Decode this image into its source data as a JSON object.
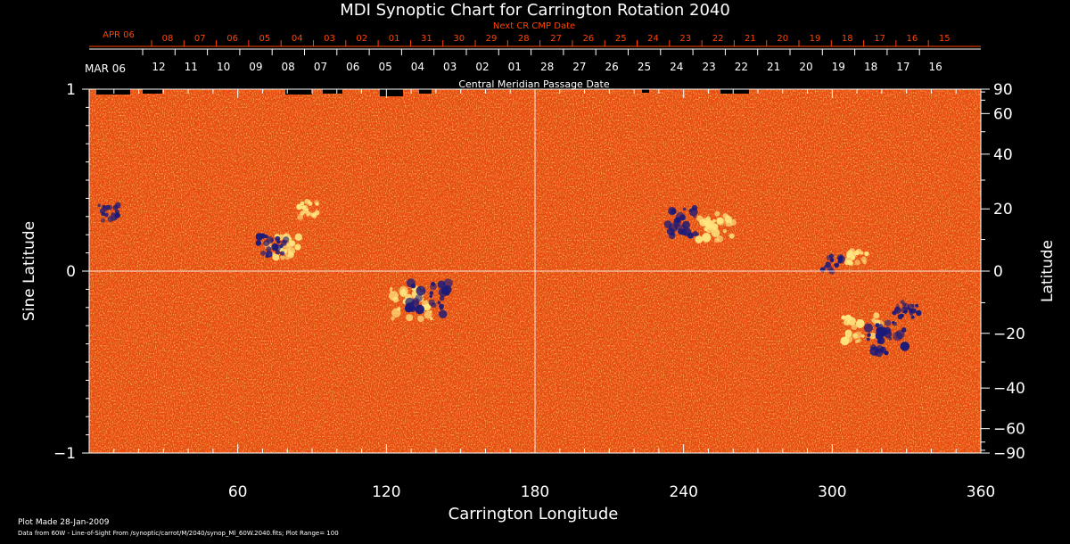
{
  "chart_data": {
    "type": "heatmap",
    "title": "MDI Synoptic Chart for Carrington Rotation 2040",
    "xlabel": "Carrington Longitude",
    "ylabel_left": "Sine Latitude",
    "ylabel_right": "Latitude",
    "xlim": [
      0,
      360
    ],
    "ylim": [
      -1,
      1
    ],
    "x_ticks": [
      60,
      120,
      180,
      240,
      300,
      360
    ],
    "y_ticks_left": [
      {
        "value": 1,
        "label": "1"
      },
      {
        "value": 0,
        "label": "0"
      },
      {
        "value": -1,
        "label": "−1"
      }
    ],
    "y_ticks_right": [
      90,
      60,
      40,
      20,
      0,
      -20,
      -40,
      -60,
      -90
    ],
    "cmp_label": "Central Meridian Passage Date",
    "cmp_month_label": "MAR 06",
    "cmp_dates": [
      "12",
      "11",
      "10",
      "09",
      "08",
      "07",
      "06",
      "05",
      "04",
      "03",
      "02",
      "01",
      "28",
      "27",
      "26",
      "25",
      "24",
      "23",
      "22",
      "21",
      "20",
      "19",
      "18",
      "17",
      "16"
    ],
    "next_cr_label": "Next CR CMP Date",
    "next_month_label": "APR 06",
    "next_dates": [
      "08",
      "07",
      "06",
      "05",
      "04",
      "03",
      "02",
      "01",
      "31",
      "30",
      "29",
      "28",
      "27",
      "26",
      "25",
      "24",
      "23",
      "22",
      "21",
      "20",
      "19",
      "18",
      "17",
      "16",
      "15"
    ],
    "colors": {
      "background": "#000000",
      "field_base": "#e84a10",
      "positive": "#ffe680",
      "negative": "#1a1a7a",
      "next_axis": "#ff4400",
      "axis": "#ffffff"
    },
    "active_regions": [
      {
        "lon": 78,
        "sinlat": 0.13,
        "polarity": "positive",
        "strength": 0.8
      },
      {
        "lon": 74,
        "sinlat": 0.14,
        "polarity": "negative",
        "strength": 0.7
      },
      {
        "lon": 130,
        "sinlat": -0.18,
        "polarity": "positive",
        "strength": 1.0
      },
      {
        "lon": 137,
        "sinlat": -0.15,
        "polarity": "negative",
        "strength": 1.0
      },
      {
        "lon": 240,
        "sinlat": 0.27,
        "polarity": "negative",
        "strength": 0.9
      },
      {
        "lon": 253,
        "sinlat": 0.24,
        "polarity": "positive",
        "strength": 0.9
      },
      {
        "lon": 312,
        "sinlat": -0.32,
        "polarity": "positive",
        "strength": 0.9
      },
      {
        "lon": 322,
        "sinlat": -0.37,
        "polarity": "negative",
        "strength": 1.0
      },
      {
        "lon": 330,
        "sinlat": -0.22,
        "polarity": "negative",
        "strength": 0.6
      },
      {
        "lon": 300,
        "sinlat": 0.04,
        "polarity": "negative",
        "strength": 0.5
      },
      {
        "lon": 310,
        "sinlat": 0.08,
        "polarity": "positive",
        "strength": 0.5
      },
      {
        "lon": 8,
        "sinlat": 0.32,
        "polarity": "negative",
        "strength": 0.5
      },
      {
        "lon": 88,
        "sinlat": 0.34,
        "polarity": "positive",
        "strength": 0.5
      }
    ]
  },
  "footer": {
    "plot_made": "Plot Made 28-Jan-2009",
    "data_from": "Data from 60W - Line-of-Sight From /synoptic/carrot/M/2040/synop_Ml_60W.2040.fits; Plot Range=  100"
  }
}
